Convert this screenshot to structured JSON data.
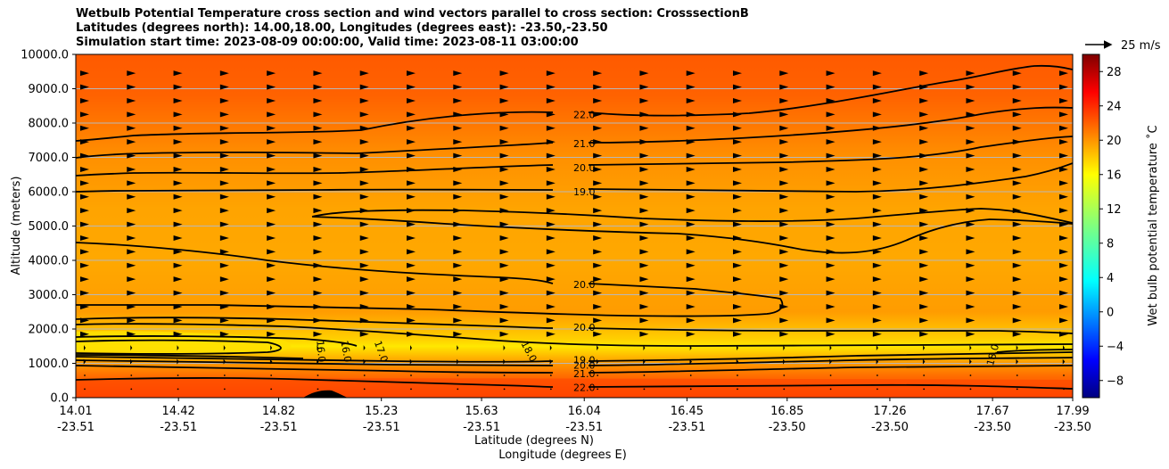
{
  "chart_data": {
    "type": "heatmap",
    "title_lines": [
      "Wetbulb Potential Temperature cross section and wind vectors parallel to cross section: CrosssectionB",
      "Latitudes (degrees north): 14.00,18.00, Longitudes (degrees east): -23.50,-23.50",
      "Simulation start time: 2023-08-09 00:00:00, Valid time: 2023-08-11 03:00:00"
    ],
    "xlabel": "Latitude (degrees N)",
    "xlabel2": "Longitude (degrees E)",
    "ylabel": "Altitude (meters)",
    "x_ticks": [
      {
        "lat": "14.01",
        "lon": "-23.51"
      },
      {
        "lat": "14.42",
        "lon": "-23.51"
      },
      {
        "lat": "14.82",
        "lon": "-23.51"
      },
      {
        "lat": "15.23",
        "lon": "-23.51"
      },
      {
        "lat": "15.63",
        "lon": "-23.51"
      },
      {
        "lat": "16.04",
        "lon": "-23.51"
      },
      {
        "lat": "16.45",
        "lon": "-23.51"
      },
      {
        "lat": "16.85",
        "lon": "-23.50"
      },
      {
        "lat": "17.26",
        "lon": "-23.50"
      },
      {
        "lat": "17.67",
        "lon": "-23.50"
      },
      {
        "lat": "17.99",
        "lon": "-23.50"
      }
    ],
    "y_ticks": [
      "0.0",
      "1000.0",
      "2000.0",
      "3000.0",
      "4000.0",
      "5000.0",
      "6000.0",
      "7000.0",
      "8000.0",
      "9000.0",
      "10000.0"
    ],
    "ylim": [
      0,
      10000
    ],
    "colorbar": {
      "label": "Wet bulb potential temperature ˚C",
      "ticks": [
        "−8",
        "−4",
        "0",
        "4",
        "8",
        "12",
        "16",
        "20",
        "24",
        "28"
      ],
      "tick_values": [
        -8,
        -4,
        0,
        4,
        8,
        12,
        16,
        20,
        24,
        28
      ],
      "range": [
        -10,
        30
      ]
    },
    "contour_labels": [
      {
        "text": "22.0",
        "lat": 16.04,
        "alt": 8250
      },
      {
        "text": "21.0",
        "lat": 16.04,
        "alt": 7400
      },
      {
        "text": "20.0",
        "lat": 16.04,
        "alt": 6700
      },
      {
        "text": "19.0",
        "lat": 16.04,
        "alt": 6000
      },
      {
        "text": "20.0",
        "lat": 16.04,
        "alt": 3300
      },
      {
        "text": "20.0",
        "lat": 16.04,
        "alt": 2050
      },
      {
        "text": "19.0",
        "lat": 16.04,
        "alt": 1100
      },
      {
        "text": "20.0",
        "lat": 16.04,
        "alt": 950
      },
      {
        "text": "21.0",
        "lat": 16.04,
        "alt": 700
      },
      {
        "text": "22.0",
        "lat": 16.04,
        "alt": 300
      },
      {
        "text": "16.0",
        "lat": 14.99,
        "alt": 1350,
        "rotate": 85
      },
      {
        "text": "16.0",
        "lat": 15.09,
        "alt": 1350,
        "rotate": 80
      },
      {
        "text": "17.0",
        "lat": 15.23,
        "alt": 1350,
        "rotate": 70
      },
      {
        "text": "18.0",
        "lat": 15.82,
        "alt": 1350,
        "rotate": 62
      },
      {
        "text": "18.0",
        "lat": 17.67,
        "alt": 1250,
        "rotate": -75
      }
    ],
    "quiver_key": {
      "label": "25 m/s"
    }
  }
}
